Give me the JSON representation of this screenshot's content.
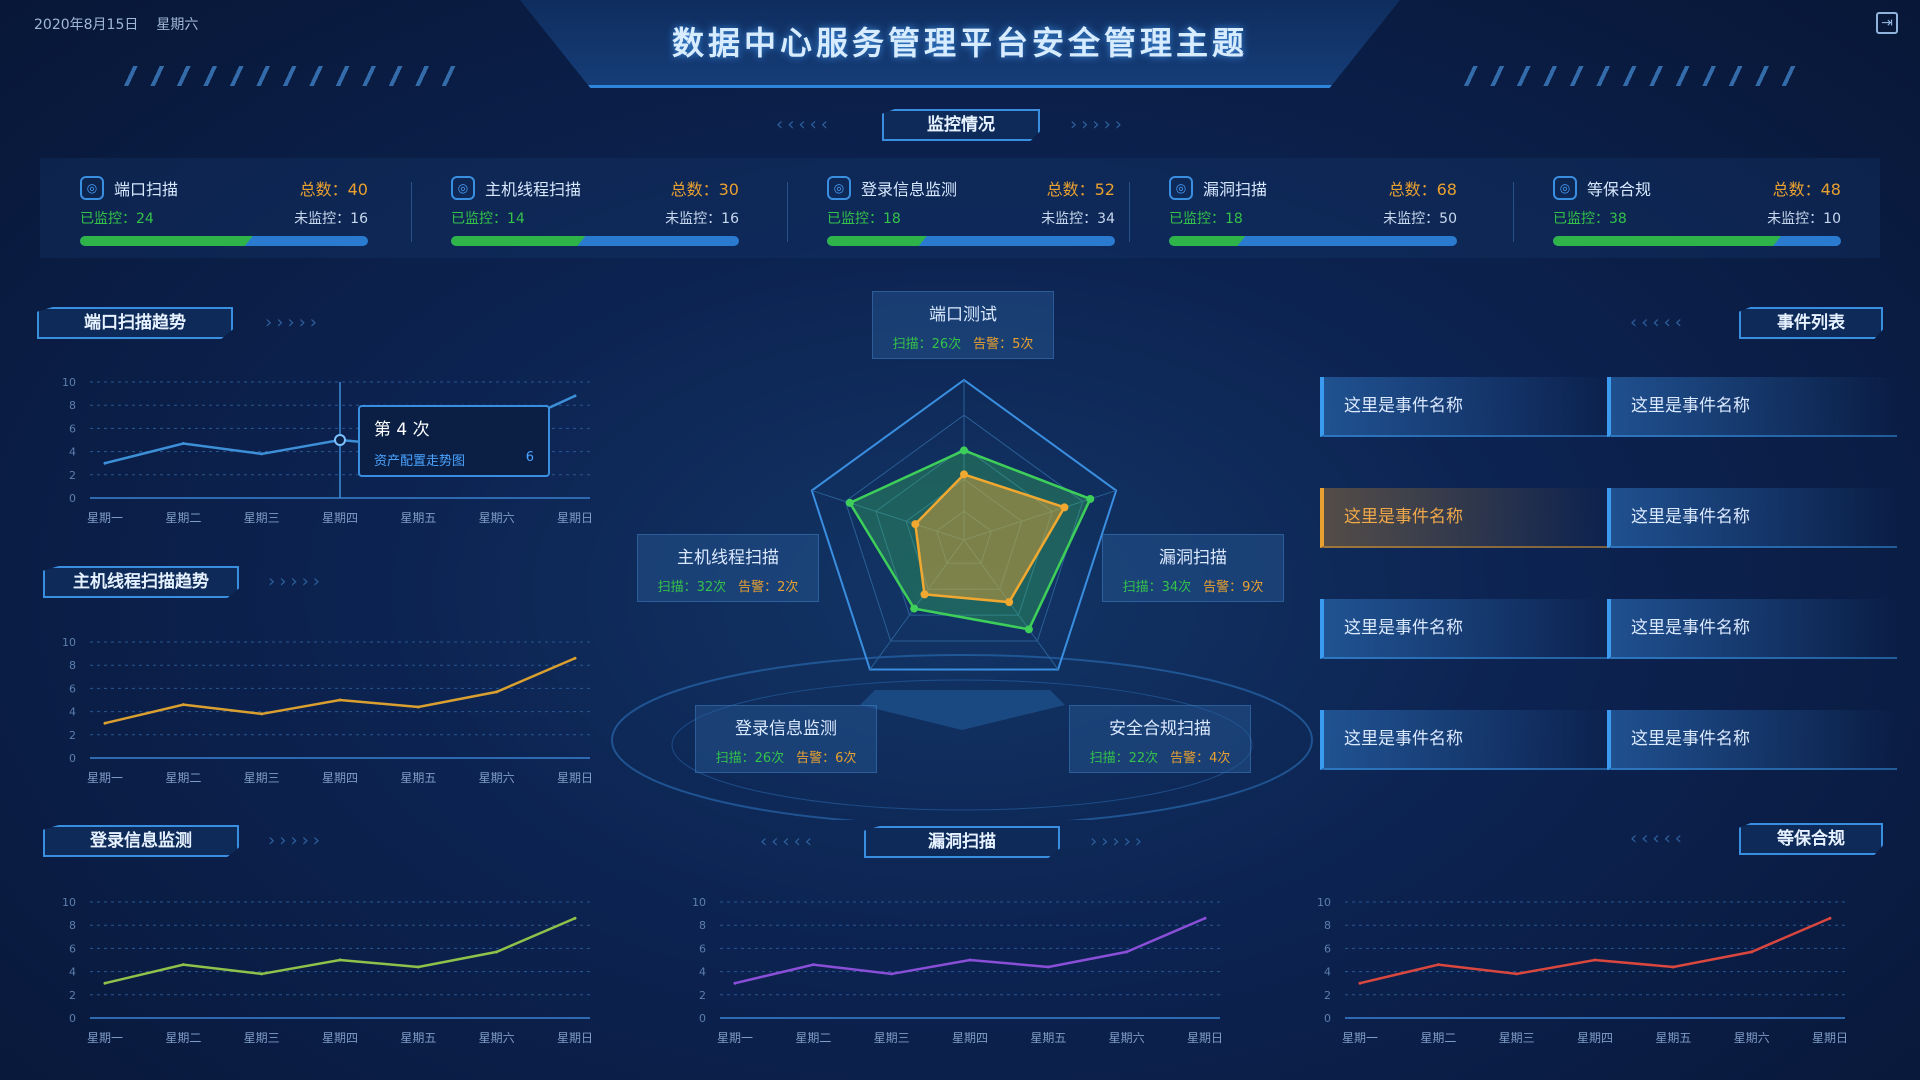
{
  "header": {
    "date": "2020年8月15日",
    "weekday": "星期六",
    "title": "数据中心服务管理平台安全管理主题",
    "logout_icon": "logout-icon"
  },
  "monitor_tab": "监控情况",
  "stats": [
    {
      "name": "端口扫描",
      "icon": "port-icon",
      "total_label": "总数：40",
      "monitored_label": "已监控：24",
      "unmonitored_label": "未监控：16",
      "total": 40,
      "monitored": 24,
      "unmonitored": 16
    },
    {
      "name": "主机线程扫描",
      "icon": "host-icon",
      "total_label": "总数：30",
      "monitored_label": "已监控：14",
      "unmonitored_label": "未监控：16",
      "total": 30,
      "monitored": 14,
      "unmonitored": 16
    },
    {
      "name": "登录信息监测",
      "icon": "login-icon",
      "total_label": "总数：52",
      "monitored_label": "已监控：18",
      "unmonitored_label": "未监控：34",
      "total": 52,
      "monitored": 18,
      "unmonitored": 34
    },
    {
      "name": "漏洞扫描",
      "icon": "vulnerability-icon",
      "total_label": "总数：68",
      "monitored_label": "已监控：18",
      "unmonitored_label": "未监控：50",
      "total": 68,
      "monitored": 18,
      "unmonitored": 50
    },
    {
      "name": "等保合规",
      "icon": "compliance-icon",
      "total_label": "总数：48",
      "monitored_label": "已监控：38",
      "unmonitored_label": "未监控：10",
      "total": 48,
      "monitored": 38,
      "unmonitored": 10
    }
  ],
  "sections": {
    "port_trend": "端口扫描趋势",
    "host_trend": "主机线程扫描趋势",
    "login": "登录信息监测",
    "vuln": "漏洞扫描",
    "compliance": "等保合规",
    "events": "事件列表"
  },
  "tooltip": {
    "title": "第 4 次",
    "series": "资产配置走势图",
    "value": "6"
  },
  "radar_labels": [
    {
      "name": "端口测试",
      "scan": "扫描：26次",
      "alert": "告警：5次"
    },
    {
      "name": "漏洞扫描",
      "scan": "扫描：34次",
      "alert": "告警：9次"
    },
    {
      "name": "安全合规扫描",
      "scan": "扫描：22次",
      "alert": "告警：4次"
    },
    {
      "name": "登录信息监测",
      "scan": "扫描：26次",
      "alert": "告警：6次"
    },
    {
      "name": "主机线程扫描",
      "scan": "扫描：32次",
      "alert": "告警：2次"
    }
  ],
  "events": [
    "这里是事件名称",
    "这里是事件名称",
    "这里是事件名称",
    "这里是事件名称",
    "这里是事件名称",
    "这里是事件名称",
    "这里是事件名称",
    "这里是事件名称"
  ],
  "events_highlighted_index": 2,
  "chart_data": [
    {
      "type": "line",
      "categories": [
        "星期一",
        "星期二",
        "星期三",
        "星期四",
        "星期五",
        "星期六",
        "星期日"
      ],
      "values": [
        3,
        4.7,
        3.8,
        5,
        4.4,
        5.7,
        8.8
      ],
      "ylim": [
        0,
        10
      ],
      "yticks": [
        0,
        2,
        4,
        6,
        8,
        10
      ],
      "color": "#3d8fd8",
      "grid": true
    },
    {
      "type": "line",
      "categories": [
        "星期一",
        "星期二",
        "星期三",
        "星期四",
        "星期五",
        "星期六",
        "星期日"
      ],
      "values": [
        3,
        4.6,
        3.8,
        5,
        4.4,
        5.7,
        8.6
      ],
      "ylim": [
        0,
        10
      ],
      "yticks": [
        0,
        2,
        4,
        6,
        8,
        10
      ],
      "color": "#d9a030",
      "grid": true
    },
    {
      "type": "line",
      "categories": [
        "星期一",
        "星期二",
        "星期三",
        "星期四",
        "星期五",
        "星期六",
        "星期日"
      ],
      "values": [
        3,
        4.6,
        3.8,
        5,
        4.4,
        5.7,
        8.6
      ],
      "ylim": [
        0,
        10
      ],
      "yticks": [
        0,
        2,
        4,
        6,
        8,
        10
      ],
      "color": "#8fc24a",
      "grid": true
    },
    {
      "type": "line",
      "categories": [
        "星期一",
        "星期二",
        "星期三",
        "星期四",
        "星期五",
        "星期六",
        "星期日"
      ],
      "values": [
        3,
        4.6,
        3.8,
        5,
        4.4,
        5.7,
        8.6
      ],
      "ylim": [
        0,
        10
      ],
      "yticks": [
        0,
        2,
        4,
        6,
        8,
        10
      ],
      "color": "#8a4fd8",
      "grid": true
    },
    {
      "type": "line",
      "categories": [
        "星期一",
        "星期二",
        "星期三",
        "星期四",
        "星期五",
        "星期六",
        "星期日"
      ],
      "values": [
        3,
        4.6,
        3.8,
        5,
        4.4,
        5.7,
        8.6
      ],
      "ylim": [
        0,
        10
      ],
      "yticks": [
        0,
        2,
        4,
        6,
        8,
        10
      ],
      "color": "#d9473f",
      "grid": true
    },
    {
      "type": "radar",
      "axes": [
        "端口测试",
        "漏洞扫描",
        "安全合规扫描",
        "登录信息监测",
        "主机线程扫描"
      ],
      "max": 100,
      "series": [
        {
          "values": [
            56,
            83,
            69,
            53,
            75
          ],
          "color": "#3ecf5a"
        },
        {
          "values": [
            41,
            66,
            48,
            42,
            32
          ],
          "color": "#f0a830"
        }
      ]
    }
  ]
}
